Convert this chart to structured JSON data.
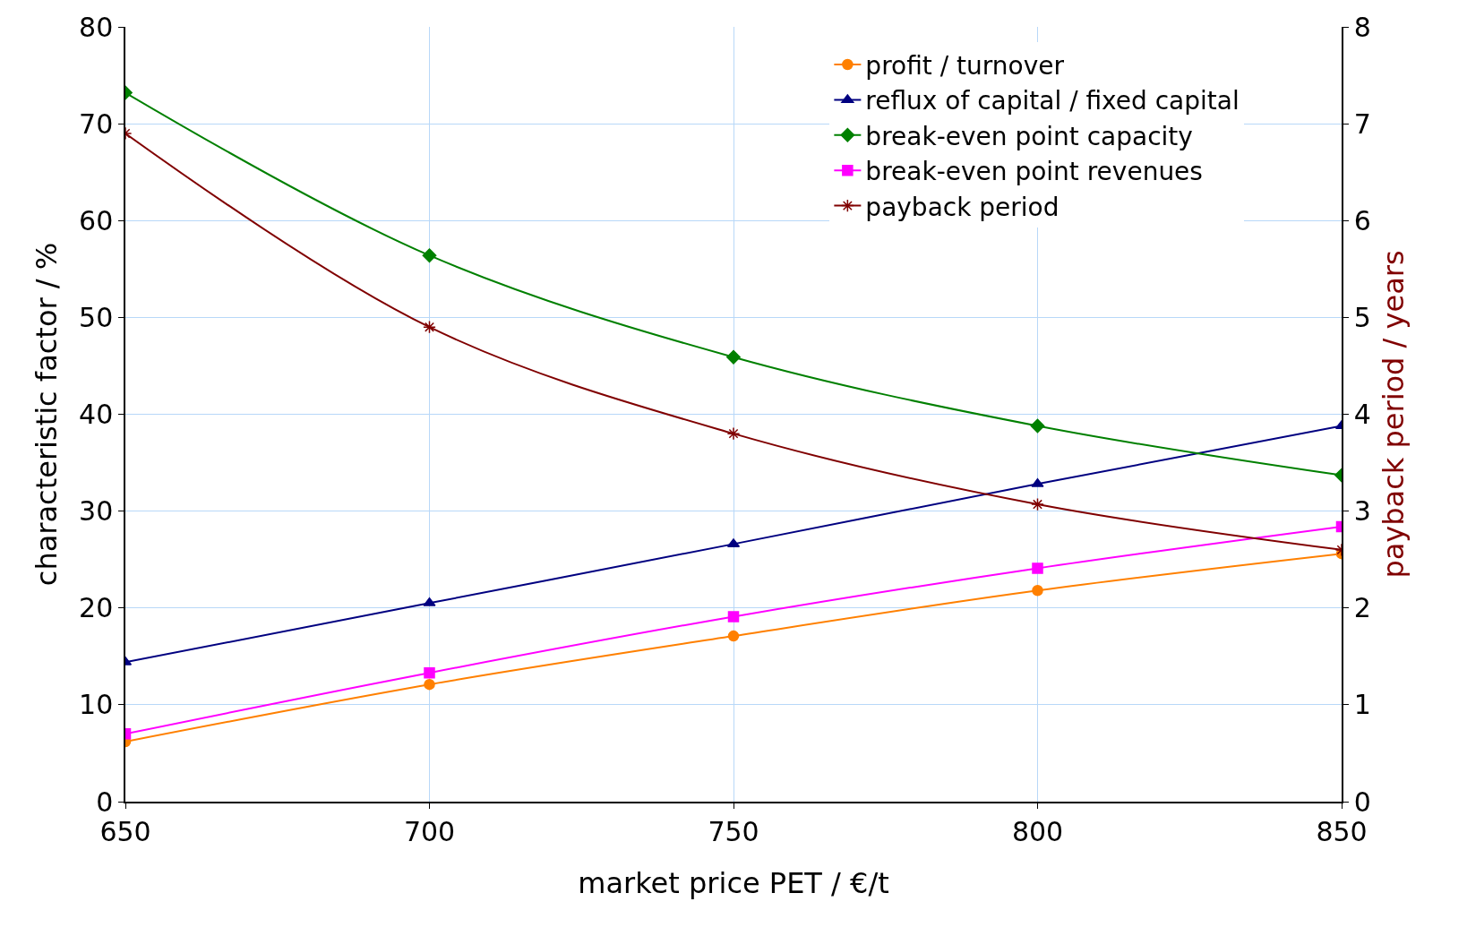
{
  "chart_data": {
    "type": "line",
    "xlabel": "market price PET / €/t",
    "ylabel": "characteristic factor / %",
    "y2label": "payback period / years",
    "x": [
      650,
      700,
      750,
      800,
      850
    ],
    "series": [
      {
        "name": "profit / turnover",
        "color": "#ff8000",
        "marker": "circle",
        "values": [
          6.2,
          12.1,
          17.1,
          21.8,
          25.6
        ]
      },
      {
        "name": "reflux of capital / fixed capital",
        "color": "#000080",
        "marker": "triangle",
        "values": [
          14.4,
          20.5,
          26.6,
          32.8,
          38.8
        ]
      },
      {
        "name": "break-even point capacity",
        "color": "#008000",
        "marker": "diamond",
        "values": [
          73.2,
          56.4,
          45.9,
          38.8,
          33.7
        ]
      },
      {
        "name": "break-even point revenues",
        "color": "#ff00ff",
        "marker": "square",
        "values": [
          7.0,
          13.3,
          19.1,
          24.1,
          28.4
        ]
      },
      {
        "name": "payback period",
        "color": "#800000",
        "marker": "cross",
        "axis": "y2",
        "values": [
          6.9,
          4.9,
          3.8,
          3.07,
          2.6
        ]
      }
    ],
    "xlim": [
      650,
      850
    ],
    "xticks": [
      650,
      700,
      750,
      800,
      850
    ],
    "ylim": [
      0,
      80
    ],
    "yticks": [
      0,
      10,
      20,
      30,
      40,
      50,
      60,
      70,
      80
    ],
    "y2lim": [
      0,
      8
    ],
    "y2ticks": [
      0,
      1,
      2,
      3,
      4,
      5,
      6,
      7,
      8
    ],
    "grid": true,
    "legend": "top right",
    "line_style": "solid"
  }
}
